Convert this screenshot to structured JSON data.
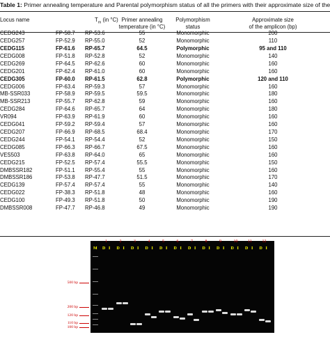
{
  "caption": {
    "label": "Table 1:",
    "text": " Primer annealing temperature and Parental polymorphism status of all the primers with their approximate size of the amplicon."
  },
  "table": {
    "headers": {
      "locus": "Locus name",
      "tm": "T",
      "tm_sub": "m",
      "tm_unit": " (in °C)",
      "temp_line1": "Primer annealing",
      "temp_line2": "temperature (in °C)",
      "poly_line1": "Polymorphism",
      "poly_line2": "status",
      "amp_line1": "Approximate size",
      "amp_line2": "of the amplicon (bp)"
    },
    "rows": [
      {
        "locus": "CEDG243",
        "fp": "FP-58.7",
        "rp": "RP-53.6",
        "temp": "55",
        "poly": "Monomorphic",
        "amp": "200",
        "bold": false
      },
      {
        "locus": "CEDG257",
        "fp": "FP-52.9",
        "rp": "RP-55.0",
        "temp": "52",
        "poly": "Monomorphic",
        "amp": "110",
        "bold": false
      },
      {
        "locus": "CEDG115",
        "fp": "FP-61.6",
        "rp": "RP-65.7",
        "temp": "64.5",
        "poly": "Polymorphic",
        "amp": "95 and 110",
        "bold": true
      },
      {
        "locus": "CEDG008",
        "fp": "FP-51.8",
        "rp": "RP-52.8",
        "temp": "52",
        "poly": "Monomorphic",
        "amp": "140",
        "bold": false
      },
      {
        "locus": "CEDG269",
        "fp": "FP-64.5",
        "rp": "RP-62.6",
        "temp": "60",
        "poly": "Monomorphic",
        "amp": "160",
        "bold": false
      },
      {
        "locus": "CEDG201",
        "fp": "FP-62.4",
        "rp": "RP-61.0",
        "temp": "60",
        "poly": "Monomorphic",
        "amp": "160",
        "bold": false
      },
      {
        "locus": "CEDG305",
        "fp": "FP-60.0",
        "rp": "RP-61.5",
        "temp": "62.8",
        "poly": "Polymorphic",
        "amp": "120 and 110",
        "bold": true
      },
      {
        "locus": "CEDG006",
        "fp": "FP-63.4",
        "rp": "RP-59.3",
        "temp": "57",
        "poly": "Monomorphic",
        "amp": "160",
        "bold": false
      },
      {
        "locus": "MB-SSR033",
        "fp": "FP-58.9",
        "rp": "RP-59.5",
        "temp": "59.5",
        "poly": "Monomorphic",
        "amp": "180",
        "bold": false
      },
      {
        "locus": "MB-SSR213",
        "fp": "FP-55.7",
        "rp": "RP-62.8",
        "temp": "59",
        "poly": "Monomorphic",
        "amp": "160",
        "bold": false
      },
      {
        "locus": "CEDG284",
        "fp": "FP-64.6",
        "rp": "RP-65.7",
        "temp": "64",
        "poly": "Monomorphic",
        "amp": "180",
        "bold": false
      },
      {
        "locus": "VR094",
        "fp": "FP-63.9",
        "rp": "RP-61.9",
        "temp": "60",
        "poly": "Monomorphic",
        "amp": "160",
        "bold": false
      },
      {
        "locus": "CEDG041",
        "fp": "FP-59.2",
        "rp": "RP-59.4",
        "temp": "57",
        "poly": "Monomorphic",
        "amp": "160",
        "bold": false
      },
      {
        "locus": "CEDG207",
        "fp": "FP-66.9",
        "rp": "RP-68.5",
        "temp": "68.4",
        "poly": "Monomorphic",
        "amp": "170",
        "bold": false
      },
      {
        "locus": "CEDG244",
        "fp": "FP-54.1",
        "rp": "RP-54.4",
        "temp": "52",
        "poly": "Monomorphic",
        "amp": "150",
        "bold": false
      },
      {
        "locus": "CEDG085",
        "fp": "FP-66.3",
        "rp": "RP-66.7",
        "temp": "67.5",
        "poly": "Monomorphic",
        "amp": "160",
        "bold": false
      },
      {
        "locus": "VES503",
        "fp": "FP-63.8",
        "rp": "RP-64.0",
        "temp": "65",
        "poly": "Monomorphic",
        "amp": "160",
        "bold": false
      },
      {
        "locus": "CEDG215",
        "fp": "FP-52.5",
        "rp": "RP-57.4",
        "temp": "55.5",
        "poly": "Monomorphic",
        "amp": "150",
        "bold": false
      },
      {
        "locus": "DMBSSR182",
        "fp": "FP-51.1",
        "rp": "RP-55.4",
        "temp": "55",
        "poly": "Monomorphic",
        "amp": "160",
        "bold": false
      },
      {
        "locus": "DMBSSR186",
        "fp": "FP-53.8",
        "rp": "RP-47.7",
        "temp": "51.5",
        "poly": "Monomorphic",
        "amp": "170",
        "bold": false
      },
      {
        "locus": "CEDG139",
        "fp": "FP-57.4",
        "rp": "RP-57.4",
        "temp": "55",
        "poly": "Monomorphic",
        "amp": "140",
        "bold": false
      },
      {
        "locus": "CEDG022",
        "fp": "FP-38.3",
        "rp": "RP-51.8",
        "temp": "48",
        "poly": "Monomorphic",
        "amp": "160",
        "bold": false
      },
      {
        "locus": "CEDG100",
        "fp": "FP-49.3",
        "rp": "RP-51.8",
        "temp": "50",
        "poly": "Monomorphic",
        "amp": "190",
        "bold": false
      },
      {
        "locus": "DMBSSR008",
        "fp": "FP-47.7",
        "rp": "RP-46.8",
        "temp": "49",
        "poly": "Monomorphic",
        "amp": "190",
        "bold": false
      }
    ]
  },
  "gel": {
    "marker_label": "M",
    "lane_numbers": [
      "1",
      "2",
      "3",
      "4",
      "5",
      "6",
      "7",
      "8",
      "9",
      "10",
      "11",
      "12"
    ],
    "lane_labels": [
      "D",
      "I"
    ],
    "size_labels": [
      "500 bp",
      "200 bp",
      "120 bp",
      "110 bp",
      "100 bp"
    ]
  }
}
